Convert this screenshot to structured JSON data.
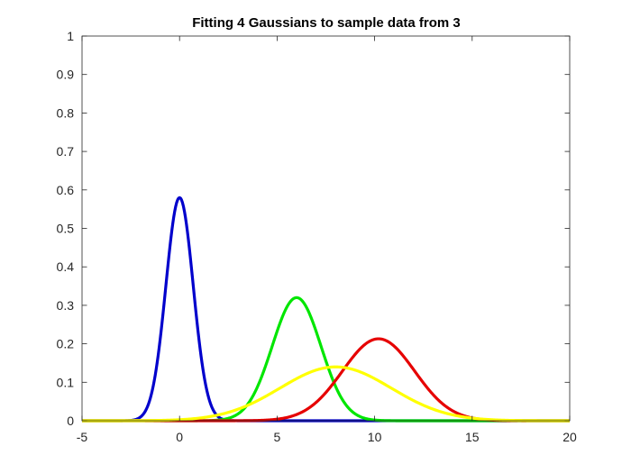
{
  "chart_data": {
    "type": "line",
    "title": "Fitting 4 Gaussians to sample data from 3",
    "xlabel": "",
    "ylabel": "",
    "xlim": [
      -5,
      20
    ],
    "ylim": [
      0,
      1
    ],
    "x_ticks": [
      -5,
      0,
      5,
      10,
      15,
      20
    ],
    "y_ticks": [
      0,
      0.1,
      0.2,
      0.3,
      0.4,
      0.5,
      0.6,
      0.7,
      0.8,
      0.9,
      1
    ],
    "x_tick_labels": [
      "-5",
      "0",
      "5",
      "10",
      "15",
      "20"
    ],
    "y_tick_labels": [
      "0",
      "0.1",
      "0.2",
      "0.3",
      "0.4",
      "0.5",
      "0.6",
      "0.7",
      "0.8",
      "0.9",
      "1"
    ],
    "grid": false,
    "box": true,
    "series": [
      {
        "color": "#0000cc",
        "curve": "gaussian",
        "peak_x": 0.0,
        "peak_y": 0.58,
        "sigma": 0.7
      },
      {
        "color": "#00e600",
        "curve": "gaussian",
        "peak_x": 6.0,
        "peak_y": 0.32,
        "sigma": 1.25
      },
      {
        "color": "#e60000",
        "curve": "gaussian",
        "peak_x": 10.2,
        "peak_y": 0.213,
        "sigma": 1.85
      },
      {
        "color": "#ffff00",
        "curve": "gaussian",
        "peak_x": 8.0,
        "peak_y": 0.14,
        "sigma": 2.85
      }
    ]
  }
}
